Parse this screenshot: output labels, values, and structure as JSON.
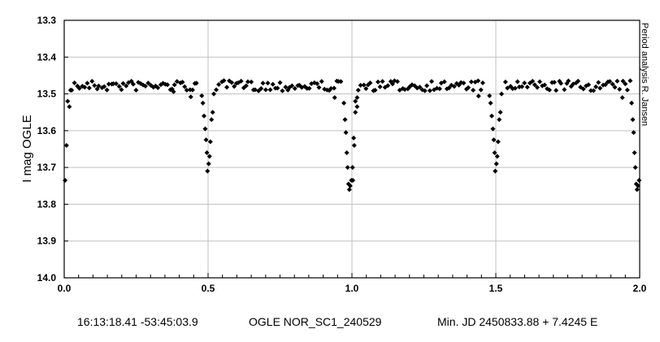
{
  "chart_data": {
    "type": "scatter",
    "title": "",
    "ylabel": "I mag OGLE",
    "xlabel": "",
    "xlim": [
      0.0,
      2.0
    ],
    "ylim": [
      13.3,
      14.0
    ],
    "y_inverted": true,
    "grid": true,
    "x_ticks": [
      "0.0",
      "0.5",
      "1.0",
      "1.5",
      "2.0"
    ],
    "y_ticks": [
      "13.3",
      "13.4",
      "13.5",
      "13.6",
      "13.7",
      "13.8",
      "13.9",
      "14.0"
    ],
    "side_note": "Period analysis   R. Jansen",
    "marker_color": "#000000",
    "period_cycles": 2,
    "eclipse_phase": 0.98,
    "baseline_mag": 13.478,
    "eclipse_depth_mag": 13.76,
    "series": [
      {
        "points": [
          [
            0.003,
            13.735
          ],
          [
            0.008,
            13.64
          ],
          [
            0.012,
            13.52
          ],
          [
            0.018,
            13.535
          ],
          [
            0.022,
            13.49
          ],
          [
            0.478,
            13.505
          ],
          [
            0.482,
            13.525
          ],
          [
            0.486,
            13.56
          ],
          [
            0.49,
            13.595
          ],
          [
            0.493,
            13.625
          ],
          [
            0.496,
            13.66
          ],
          [
            0.498,
            13.71
          ],
          [
            0.502,
            13.69
          ],
          [
            0.505,
            13.67
          ],
          [
            0.508,
            13.63
          ],
          [
            0.512,
            13.57
          ],
          [
            0.516,
            13.55
          ],
          [
            0.52,
            13.5
          ],
          [
            0.972,
            13.525
          ],
          [
            0.976,
            13.57
          ],
          [
            0.979,
            13.605
          ],
          [
            0.982,
            13.66
          ],
          [
            0.985,
            13.7
          ],
          [
            0.988,
            13.745
          ],
          [
            0.991,
            13.76
          ],
          [
            0.994,
            13.75
          ],
          [
            0.998,
            13.735
          ],
          [
            1.002,
            13.7
          ],
          [
            1.006,
            13.62
          ],
          [
            1.012,
            13.55
          ],
          [
            1.018,
            13.51
          ]
        ]
      }
    ]
  },
  "caption": {
    "coords": "16:13:18.41 -53:45:03.9",
    "star_id": "OGLE NOR_SC1_240529",
    "ephemeris": "Min. JD 2450833.88 + 7.4245 E"
  }
}
